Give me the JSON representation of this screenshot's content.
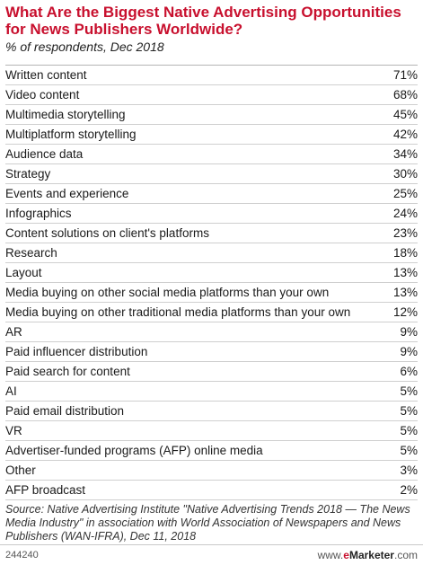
{
  "chart_data": {
    "type": "table",
    "title": "What Are the Biggest Native Advertising Opportunities for News Publishers Worldwide?",
    "subtitle": "% of respondents, Dec 2018",
    "categories": [
      "Written content",
      "Video content",
      "Multimedia storytelling",
      "Multiplatform storytelling",
      "Audience data",
      "Strategy",
      "Events and experience",
      "Infographics",
      "Content solutions on client's platforms",
      "Research",
      "Layout",
      "Media buying on other social media platforms than your own",
      "Media buying on other traditional media platforms than your own",
      "AR",
      "Paid influencer distribution",
      "Paid search for content",
      "AI",
      "Paid email distribution",
      "VR",
      "Advertiser-funded programs (AFP) online media",
      "Other",
      "AFP broadcast"
    ],
    "values": [
      71,
      68,
      45,
      42,
      34,
      30,
      25,
      24,
      23,
      18,
      13,
      13,
      12,
      9,
      9,
      6,
      5,
      5,
      5,
      5,
      3,
      2
    ],
    "value_suffix": "%",
    "source": "Source: Native Advertising Institute \"Native Advertising Trends 2018 — The News Media Industry\" in association with World Association of Newspapers and News Publishers (WAN-IFRA), Dec 11, 2018"
  },
  "footer": {
    "chart_id": "244240",
    "brand_prefix": "www.",
    "brand_e": "e",
    "brand_name": "Marketer",
    "brand_suffix": ".com"
  },
  "colors": {
    "title": "#c8102e",
    "row_border": "#cfcfcf"
  }
}
